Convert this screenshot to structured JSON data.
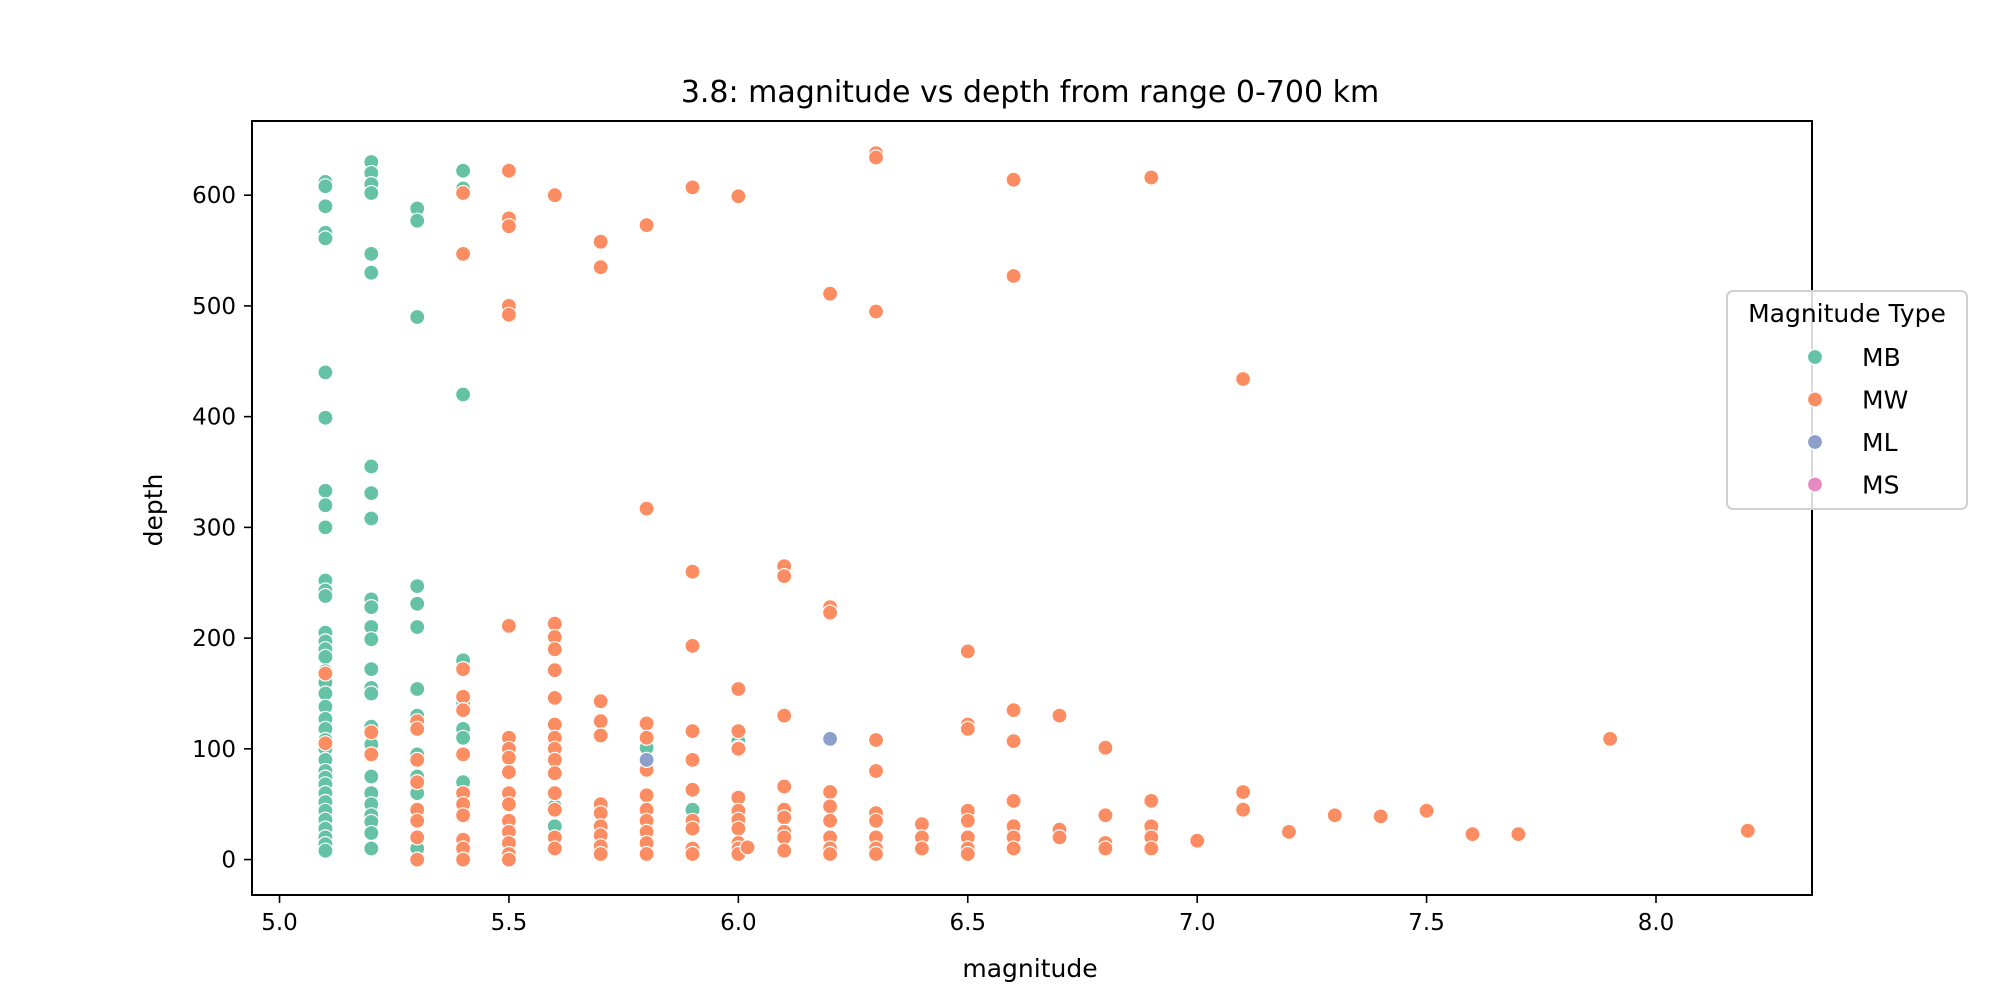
{
  "chart_data": {
    "type": "scatter",
    "title": "3.8: magnitude vs depth from range 0-700 km",
    "xlabel": "magnitude",
    "ylabel": "depth",
    "xlim": [
      4.94,
      8.34
    ],
    "ylim": [
      -32,
      667
    ],
    "xticks": [
      5.0,
      5.5,
      6.0,
      6.5,
      7.0,
      7.5,
      8.0
    ],
    "xtick_labels": [
      "5.0",
      "5.5",
      "6.0",
      "6.5",
      "7.0",
      "7.5",
      "8.0"
    ],
    "yticks": [
      0,
      100,
      200,
      300,
      400,
      500,
      600
    ],
    "ytick_labels": [
      "0",
      "100",
      "200",
      "300",
      "400",
      "500",
      "600"
    ],
    "grid": false,
    "legend": {
      "title": "Magnitude Type",
      "placement": "center-right, outside plot"
    },
    "series": [
      {
        "name": "MB",
        "color": "#66c2a5",
        "points": [
          [
            5.1,
            612
          ],
          [
            5.1,
            608
          ],
          [
            5.1,
            590
          ],
          [
            5.1,
            566
          ],
          [
            5.1,
            561
          ],
          [
            5.1,
            440
          ],
          [
            5.1,
            399
          ],
          [
            5.1,
            333
          ],
          [
            5.1,
            320
          ],
          [
            5.1,
            300
          ],
          [
            5.1,
            252
          ],
          [
            5.1,
            243
          ],
          [
            5.1,
            238
          ],
          [
            5.1,
            205
          ],
          [
            5.1,
            197
          ],
          [
            5.1,
            190
          ],
          [
            5.1,
            183
          ],
          [
            5.1,
            170
          ],
          [
            5.1,
            160
          ],
          [
            5.1,
            150
          ],
          [
            5.1,
            138
          ],
          [
            5.1,
            127
          ],
          [
            5.1,
            118
          ],
          [
            5.1,
            108
          ],
          [
            5.1,
            100
          ],
          [
            5.1,
            90
          ],
          [
            5.1,
            80
          ],
          [
            5.1,
            74
          ],
          [
            5.1,
            68
          ],
          [
            5.1,
            60
          ],
          [
            5.1,
            52
          ],
          [
            5.1,
            44
          ],
          [
            5.1,
            36
          ],
          [
            5.1,
            28
          ],
          [
            5.1,
            20
          ],
          [
            5.1,
            14
          ],
          [
            5.1,
            8
          ],
          [
            5.2,
            630
          ],
          [
            5.2,
            620
          ],
          [
            5.2,
            610
          ],
          [
            5.2,
            602
          ],
          [
            5.2,
            547
          ],
          [
            5.2,
            530
          ],
          [
            5.2,
            355
          ],
          [
            5.2,
            331
          ],
          [
            5.2,
            308
          ],
          [
            5.2,
            235
          ],
          [
            5.2,
            228
          ],
          [
            5.2,
            210
          ],
          [
            5.2,
            199
          ],
          [
            5.2,
            172
          ],
          [
            5.2,
            155
          ],
          [
            5.2,
            150
          ],
          [
            5.2,
            120
          ],
          [
            5.2,
            104
          ],
          [
            5.2,
            75
          ],
          [
            5.2,
            60
          ],
          [
            5.2,
            50
          ],
          [
            5.2,
            40
          ],
          [
            5.2,
            34
          ],
          [
            5.2,
            24
          ],
          [
            5.2,
            10
          ],
          [
            5.3,
            588
          ],
          [
            5.3,
            577
          ],
          [
            5.3,
            490
          ],
          [
            5.3,
            247
          ],
          [
            5.3,
            231
          ],
          [
            5.3,
            210
          ],
          [
            5.3,
            154
          ],
          [
            5.3,
            130
          ],
          [
            5.3,
            95
          ],
          [
            5.3,
            75
          ],
          [
            5.3,
            60
          ],
          [
            5.3,
            10
          ],
          [
            5.4,
            622
          ],
          [
            5.4,
            606
          ],
          [
            5.4,
            420
          ],
          [
            5.4,
            180
          ],
          [
            5.4,
            142
          ],
          [
            5.4,
            118
          ],
          [
            5.4,
            110
          ],
          [
            5.4,
            70
          ],
          [
            5.6,
            48
          ],
          [
            5.6,
            30
          ],
          [
            5.8,
            101
          ],
          [
            5.9,
            45
          ],
          [
            6.0,
            107
          ],
          [
            6.0,
            101
          ]
        ]
      },
      {
        "name": "MW",
        "color": "#fc8d62",
        "points": [
          [
            5.1,
            168
          ],
          [
            5.1,
            105
          ],
          [
            5.2,
            115
          ],
          [
            5.2,
            95
          ],
          [
            5.3,
            125
          ],
          [
            5.3,
            118
          ],
          [
            5.3,
            90
          ],
          [
            5.3,
            70
          ],
          [
            5.3,
            45
          ],
          [
            5.3,
            35
          ],
          [
            5.3,
            20
          ],
          [
            5.3,
            0
          ],
          [
            5.4,
            602
          ],
          [
            5.4,
            547
          ],
          [
            5.4,
            172
          ],
          [
            5.4,
            147
          ],
          [
            5.4,
            135
          ],
          [
            5.4,
            95
          ],
          [
            5.4,
            60
          ],
          [
            5.4,
            50
          ],
          [
            5.4,
            40
          ],
          [
            5.4,
            18
          ],
          [
            5.4,
            10
          ],
          [
            5.4,
            0
          ],
          [
            5.5,
            622
          ],
          [
            5.5,
            579
          ],
          [
            5.5,
            572
          ],
          [
            5.5,
            500
          ],
          [
            5.5,
            492
          ],
          [
            5.5,
            211
          ],
          [
            5.5,
            110
          ],
          [
            5.5,
            100
          ],
          [
            5.5,
            92
          ],
          [
            5.5,
            79
          ],
          [
            5.5,
            60
          ],
          [
            5.5,
            50
          ],
          [
            5.5,
            35
          ],
          [
            5.5,
            25
          ],
          [
            5.5,
            15
          ],
          [
            5.5,
            5
          ],
          [
            5.5,
            0
          ],
          [
            5.6,
            600
          ],
          [
            5.6,
            213
          ],
          [
            5.6,
            201
          ],
          [
            5.6,
            190
          ],
          [
            5.6,
            171
          ],
          [
            5.6,
            146
          ],
          [
            5.6,
            122
          ],
          [
            5.6,
            110
          ],
          [
            5.6,
            100
          ],
          [
            5.6,
            90
          ],
          [
            5.6,
            78
          ],
          [
            5.6,
            60
          ],
          [
            5.6,
            45
          ],
          [
            5.6,
            20
          ],
          [
            5.6,
            10
          ],
          [
            5.7,
            558
          ],
          [
            5.7,
            535
          ],
          [
            5.7,
            143
          ],
          [
            5.7,
            125
          ],
          [
            5.7,
            112
          ],
          [
            5.7,
            50
          ],
          [
            5.7,
            42
          ],
          [
            5.7,
            30
          ],
          [
            5.7,
            22
          ],
          [
            5.7,
            12
          ],
          [
            5.7,
            5
          ],
          [
            5.8,
            573
          ],
          [
            5.8,
            317
          ],
          [
            5.8,
            123
          ],
          [
            5.8,
            110
          ],
          [
            5.8,
            81
          ],
          [
            5.8,
            58
          ],
          [
            5.8,
            45
          ],
          [
            5.8,
            35
          ],
          [
            5.8,
            25
          ],
          [
            5.8,
            15
          ],
          [
            5.8,
            5
          ],
          [
            5.9,
            607
          ],
          [
            5.9,
            260
          ],
          [
            5.9,
            193
          ],
          [
            5.9,
            116
          ],
          [
            5.9,
            90
          ],
          [
            5.9,
            63
          ],
          [
            5.9,
            35
          ],
          [
            5.9,
            28
          ],
          [
            5.9,
            10
          ],
          [
            5.9,
            5
          ],
          [
            6.0,
            599
          ],
          [
            6.0,
            154
          ],
          [
            6.0,
            116
          ],
          [
            6.0,
            100
          ],
          [
            6.0,
            56
          ],
          [
            6.0,
            44
          ],
          [
            6.0,
            36
          ],
          [
            6.0,
            28
          ],
          [
            6.0,
            15
          ],
          [
            6.0,
            10
          ],
          [
            6.0,
            5
          ],
          [
            6.02,
            11
          ],
          [
            6.1,
            265
          ],
          [
            6.1,
            256
          ],
          [
            6.1,
            130
          ],
          [
            6.1,
            66
          ],
          [
            6.1,
            45
          ],
          [
            6.1,
            38
          ],
          [
            6.1,
            25
          ],
          [
            6.1,
            20
          ],
          [
            6.1,
            8
          ],
          [
            6.2,
            511
          ],
          [
            6.2,
            228
          ],
          [
            6.2,
            223
          ],
          [
            6.2,
            61
          ],
          [
            6.2,
            48
          ],
          [
            6.2,
            35
          ],
          [
            6.2,
            20
          ],
          [
            6.2,
            10
          ],
          [
            6.2,
            5
          ],
          [
            6.3,
            638
          ],
          [
            6.3,
            634
          ],
          [
            6.3,
            495
          ],
          [
            6.3,
            108
          ],
          [
            6.3,
            80
          ],
          [
            6.3,
            42
          ],
          [
            6.3,
            35
          ],
          [
            6.3,
            20
          ],
          [
            6.3,
            10
          ],
          [
            6.3,
            5
          ],
          [
            6.4,
            32
          ],
          [
            6.4,
            20
          ],
          [
            6.4,
            10
          ],
          [
            6.5,
            188
          ],
          [
            6.5,
            122
          ],
          [
            6.5,
            118
          ],
          [
            6.5,
            44
          ],
          [
            6.5,
            35
          ],
          [
            6.5,
            20
          ],
          [
            6.5,
            10
          ],
          [
            6.5,
            5
          ],
          [
            6.6,
            614
          ],
          [
            6.6,
            527
          ],
          [
            6.6,
            135
          ],
          [
            6.6,
            107
          ],
          [
            6.6,
            53
          ],
          [
            6.6,
            30
          ],
          [
            6.6,
            20
          ],
          [
            6.6,
            10
          ],
          [
            6.7,
            130
          ],
          [
            6.7,
            27
          ],
          [
            6.7,
            20
          ],
          [
            6.8,
            101
          ],
          [
            6.8,
            40
          ],
          [
            6.8,
            15
          ],
          [
            6.8,
            10
          ],
          [
            6.9,
            616
          ],
          [
            6.9,
            53
          ],
          [
            6.9,
            30
          ],
          [
            6.9,
            20
          ],
          [
            6.9,
            10
          ],
          [
            7.0,
            17
          ],
          [
            7.1,
            434
          ],
          [
            7.1,
            61
          ],
          [
            7.1,
            45
          ],
          [
            7.2,
            25
          ],
          [
            7.3,
            40
          ],
          [
            7.4,
            39
          ],
          [
            7.5,
            44
          ],
          [
            7.6,
            23
          ],
          [
            7.7,
            23
          ],
          [
            7.9,
            109
          ],
          [
            8.2,
            26
          ]
        ]
      },
      {
        "name": "ML",
        "color": "#8da0cb",
        "points": [
          [
            6.2,
            109
          ],
          [
            5.8,
            90
          ]
        ]
      },
      {
        "name": "MS",
        "color": "#e78ac3",
        "points": []
      }
    ]
  }
}
